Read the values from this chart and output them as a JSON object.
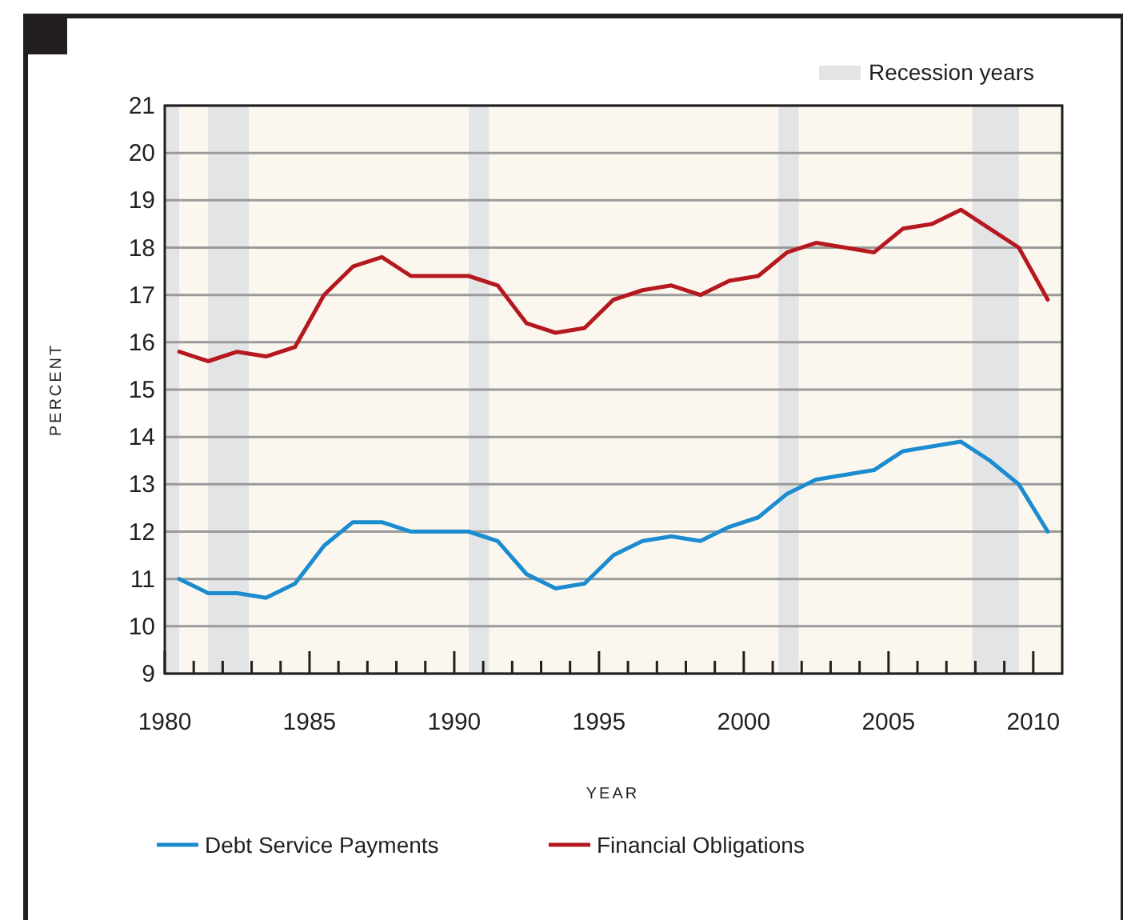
{
  "chart_data": {
    "type": "line",
    "xlabel": "YEAR",
    "ylabel": "PERCENT",
    "xlim": [
      1980,
      2011
    ],
    "xticks": [
      1980,
      {
        "value": 1981,
        "label": null
      },
      {
        "value": 1982,
        "label": null
      },
      {
        "value": 1983,
        "label": null
      },
      {
        "value": 1984,
        "label": null
      },
      1985,
      {
        "value": 1986,
        "label": null
      },
      {
        "value": 1987,
        "label": null
      },
      {
        "value": 1988,
        "label": null
      },
      {
        "value": 1989,
        "label": null
      },
      1990,
      {
        "value": 1991,
        "label": null
      },
      {
        "value": 1992,
        "label": null
      },
      {
        "value": 1993,
        "label": null
      },
      {
        "value": 1994,
        "label": null
      },
      1995,
      {
        "value": 1996,
        "label": null
      },
      {
        "value": 1997,
        "label": null
      },
      {
        "value": 1998,
        "label": null
      },
      {
        "value": 1999,
        "label": null
      },
      2000,
      {
        "value": 2001,
        "label": null
      },
      {
        "value": 2002,
        "label": null
      },
      {
        "value": 2003,
        "label": null
      },
      {
        "value": 2004,
        "label": null
      },
      2005,
      {
        "value": 2006,
        "label": null
      },
      {
        "value": 2007,
        "label": null
      },
      {
        "value": 2008,
        "label": null
      },
      {
        "value": 2009,
        "label": null
      },
      2010
    ],
    "ylim": [
      9,
      21
    ],
    "yticks": [
      9,
      10,
      11,
      12,
      13,
      14,
      15,
      16,
      17,
      18,
      19,
      20,
      21
    ],
    "grid": "y",
    "legend": "bottom",
    "x": [
      1980.5,
      1981.5,
      1982.5,
      1983.5,
      1984.5,
      1985.5,
      1986.5,
      1987.5,
      1988.5,
      1989.5,
      1990.5,
      1991.5,
      1992.5,
      1993.5,
      1994.5,
      1995.5,
      1996.5,
      1997.5,
      1998.5,
      1999.5,
      2000.5,
      2001.5,
      2002.5,
      2003.5,
      2004.5,
      2005.5,
      2006.5,
      2007.5,
      2008.5,
      2009.5,
      2010.5
    ],
    "series": [
      {
        "name": "Debt Service Payments",
        "color": "#1b8ccf",
        "values": [
          11.0,
          10.7,
          10.7,
          10.6,
          10.9,
          11.7,
          12.2,
          12.2,
          12.0,
          12.0,
          12.0,
          11.8,
          11.1,
          10.8,
          10.9,
          11.5,
          11.8,
          11.9,
          11.8,
          12.1,
          12.3,
          12.8,
          13.1,
          13.2,
          13.3,
          13.7,
          13.8,
          13.9,
          13.5,
          13.0,
          12.0
        ]
      },
      {
        "name": "Financial Obligations",
        "color": "#b5191f",
        "values": [
          15.8,
          15.6,
          15.8,
          15.7,
          15.9,
          17.0,
          17.6,
          17.8,
          17.4,
          17.4,
          17.4,
          17.2,
          16.4,
          16.2,
          16.3,
          16.9,
          17.1,
          17.2,
          17.0,
          17.3,
          17.4,
          17.9,
          18.1,
          18.0,
          17.9,
          18.4,
          18.5,
          18.8,
          18.4,
          18.0,
          16.9
        ]
      }
    ],
    "bands": [
      {
        "axis": "x",
        "from": 1980,
        "to": 1980.5,
        "label": "Recession years",
        "color": "#e3e4e6"
      },
      {
        "axis": "x",
        "from": 1981.5,
        "to": 1982.9,
        "color": "#e3e4e6"
      },
      {
        "axis": "x",
        "from": 1990.5,
        "to": 1991.2,
        "color": "#e3e4e6"
      },
      {
        "axis": "x",
        "from": 2001.2,
        "to": 2001.9,
        "color": "#e3e4e6"
      },
      {
        "axis": "x",
        "from": 2007.9,
        "to": 2009.5,
        "color": "#e3e4e6"
      }
    ]
  }
}
